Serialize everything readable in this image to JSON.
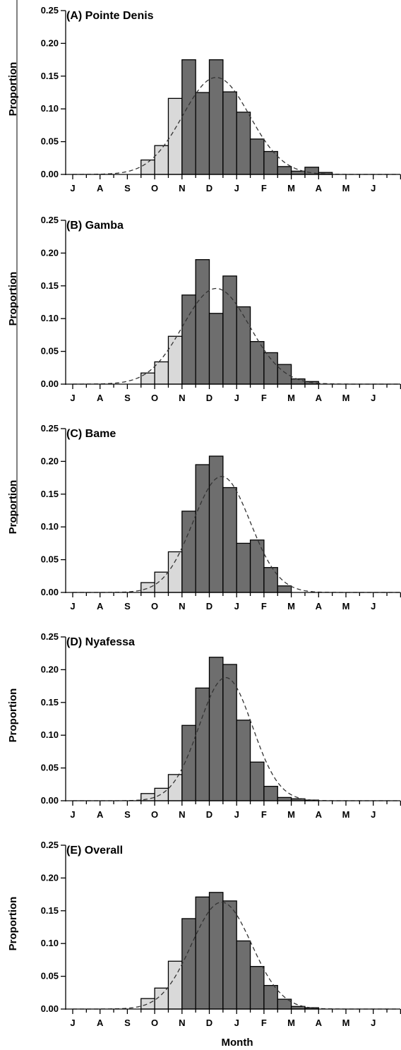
{
  "chart_data": [
    {
      "type": "bar",
      "title": "(A) Pointe Denis",
      "xlabel": "",
      "ylabel": "Proportion",
      "ylim": [
        0,
        0.25
      ],
      "yticks": [
        "0.00",
        "0.05",
        "0.10",
        "0.15",
        "0.20",
        "0.25"
      ],
      "month_labels": [
        "J",
        "A",
        "S",
        "O",
        "N",
        "D",
        "J",
        "F",
        "M",
        "A",
        "M",
        "J"
      ],
      "values": [
        0,
        0,
        0,
        0,
        0,
        0.022,
        0.044,
        0.116,
        0.175,
        0.125,
        0.175,
        0.126,
        0.095,
        0.054,
        0.035,
        0.012,
        0.005,
        0.011,
        0.003,
        0,
        0,
        0,
        0,
        0
      ],
      "light_bars": [
        5,
        6,
        7
      ],
      "curve": {
        "peak": 0.148,
        "peak_half_month": 10.5,
        "sd_half_months": 2.45
      },
      "colors": {
        "light": "#d9d9d9",
        "dark": "#6e6e6e",
        "curve": "#333333"
      }
    },
    {
      "type": "bar",
      "title": "(B) Gamba",
      "xlabel": "",
      "ylabel": "Proportion",
      "ylim": [
        0,
        0.25
      ],
      "yticks": [
        "0.00",
        "0.05",
        "0.10",
        "0.15",
        "0.20",
        "0.25"
      ],
      "month_labels": [
        "J",
        "A",
        "S",
        "O",
        "N",
        "D",
        "J",
        "F",
        "M",
        "A",
        "M",
        "J"
      ],
      "values": [
        0,
        0,
        0,
        0,
        0,
        0.017,
        0.034,
        0.073,
        0.136,
        0.19,
        0.108,
        0.165,
        0.118,
        0.065,
        0.048,
        0.03,
        0.008,
        0.004,
        0,
        0,
        0,
        0,
        0,
        0
      ],
      "light_bars": [
        5,
        6,
        7
      ],
      "curve": {
        "peak": 0.146,
        "peak_half_month": 10.5,
        "sd_half_months": 2.45
      },
      "colors": {
        "light": "#d9d9d9",
        "dark": "#6e6e6e",
        "curve": "#333333"
      }
    },
    {
      "type": "bar",
      "title": "(C) Bame",
      "xlabel": "",
      "ylabel": "Proportion",
      "ylim": [
        0,
        0.25
      ],
      "yticks": [
        "0.00",
        "0.05",
        "0.10",
        "0.15",
        "0.20",
        "0.25"
      ],
      "month_labels": [
        "J",
        "A",
        "S",
        "O",
        "N",
        "D",
        "J",
        "F",
        "M",
        "A",
        "M",
        "J"
      ],
      "values": [
        0,
        0,
        0,
        0,
        0,
        0.015,
        0.031,
        0.062,
        0.124,
        0.195,
        0.208,
        0.16,
        0.075,
        0.08,
        0.038,
        0.01,
        0,
        0,
        0,
        0,
        0,
        0,
        0,
        0
      ],
      "light_bars": [
        5,
        6,
        7
      ],
      "curve": {
        "peak": 0.177,
        "peak_half_month": 10.9,
        "sd_half_months": 2.1
      },
      "colors": {
        "light": "#d9d9d9",
        "dark": "#6e6e6e",
        "curve": "#333333"
      }
    },
    {
      "type": "bar",
      "title": "(D) Nyafessa",
      "xlabel": "",
      "ylabel": "Proportion",
      "ylim": [
        0,
        0.25
      ],
      "yticks": [
        "0.00",
        "0.05",
        "0.10",
        "0.15",
        "0.20",
        "0.25"
      ],
      "month_labels": [
        "J",
        "A",
        "S",
        "O",
        "N",
        "D",
        "J",
        "F",
        "M",
        "A",
        "M",
        "J"
      ],
      "values": [
        0,
        0,
        0,
        0,
        0,
        0.011,
        0.019,
        0.04,
        0.115,
        0.172,
        0.219,
        0.208,
        0.123,
        0.059,
        0.022,
        0.005,
        0.003,
        0.001,
        0,
        0,
        0,
        0,
        0,
        0
      ],
      "light_bars": [
        5,
        6,
        7
      ],
      "curve": {
        "peak": 0.188,
        "peak_half_month": 11.2,
        "sd_half_months": 1.95
      },
      "colors": {
        "light": "#d9d9d9",
        "dark": "#6e6e6e",
        "curve": "#333333"
      }
    },
    {
      "type": "bar",
      "title": "(E) Overall",
      "xlabel": "Month",
      "ylabel": "Proportion",
      "ylim": [
        0,
        0.25
      ],
      "yticks": [
        "0.00",
        "0.05",
        "0.10",
        "0.15",
        "0.20",
        "0.25"
      ],
      "month_labels": [
        "J",
        "A",
        "S",
        "O",
        "N",
        "D",
        "J",
        "F",
        "M",
        "A",
        "M",
        "J"
      ],
      "values": [
        0,
        0,
        0,
        0,
        0,
        0.016,
        0.032,
        0.073,
        0.138,
        0.171,
        0.178,
        0.165,
        0.104,
        0.065,
        0.036,
        0.015,
        0.004,
        0.002,
        0,
        0,
        0,
        0,
        0,
        0
      ],
      "light_bars": [
        5,
        6,
        7
      ],
      "curve": {
        "peak": 0.163,
        "peak_half_month": 10.9,
        "sd_half_months": 2.2
      },
      "colors": {
        "light": "#d9d9d9",
        "dark": "#6e6e6e",
        "curve": "#333333"
      }
    }
  ]
}
